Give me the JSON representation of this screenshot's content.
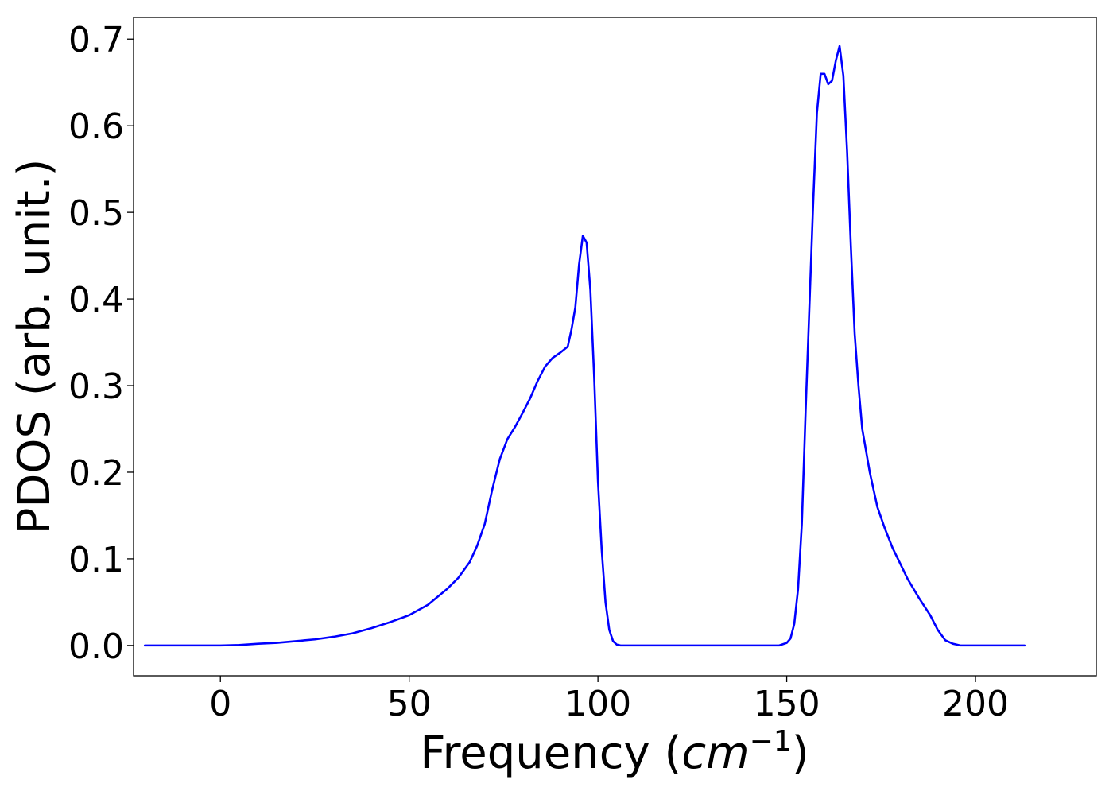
{
  "chart_data": {
    "type": "line",
    "xlabel": "Frequency",
    "xlabel_unit_base": "cm",
    "xlabel_unit_exp": "−1",
    "ylabel": "PDOS (arb. unit.)",
    "xlim": [
      -23,
      232
    ],
    "ylim": [
      -0.035,
      0.725
    ],
    "x_ticks": [
      0,
      50,
      100,
      150,
      200
    ],
    "y_ticks": [
      0.0,
      0.1,
      0.2,
      0.3,
      0.4,
      0.5,
      0.6,
      0.7
    ],
    "y_tick_labels": [
      "0.0",
      "0.1",
      "0.2",
      "0.3",
      "0.4",
      "0.5",
      "0.6",
      "0.7"
    ],
    "grid": false,
    "series": [
      {
        "color": "#0000ff",
        "x": [
          -20,
          -10,
          0,
          5,
          10,
          15,
          20,
          25,
          30,
          35,
          40,
          45,
          50,
          55,
          60,
          63,
          66,
          68,
          70,
          72,
          74,
          76,
          78,
          80,
          82,
          84,
          86,
          88,
          90,
          92,
          93,
          94,
          95,
          96,
          97,
          98,
          99,
          100,
          101,
          102,
          103,
          104,
          105,
          106,
          107,
          108,
          110,
          120,
          130,
          140,
          148,
          150,
          151,
          152,
          153,
          154,
          155,
          156,
          157,
          158,
          159,
          160,
          161,
          162,
          163,
          164,
          165,
          166,
          167,
          168,
          169,
          170,
          171,
          172,
          173,
          174,
          176,
          178,
          180,
          182,
          185,
          188,
          190,
          192,
          194,
          195,
          196,
          197,
          198,
          200,
          213
        ],
        "y": [
          0.0,
          0.0,
          0.0,
          0.0005,
          0.002,
          0.003,
          0.005,
          0.007,
          0.01,
          0.014,
          0.02,
          0.027,
          0.035,
          0.047,
          0.065,
          0.078,
          0.096,
          0.115,
          0.14,
          0.18,
          0.215,
          0.238,
          0.252,
          0.268,
          0.285,
          0.305,
          0.322,
          0.332,
          0.338,
          0.345,
          0.365,
          0.39,
          0.44,
          0.473,
          0.465,
          0.41,
          0.31,
          0.19,
          0.11,
          0.05,
          0.018,
          0.005,
          0.001,
          0.0,
          0.0,
          0.0,
          0.0,
          0.0,
          0.0,
          0.0,
          0.0,
          0.003,
          0.008,
          0.025,
          0.065,
          0.14,
          0.27,
          0.39,
          0.51,
          0.615,
          0.66,
          0.66,
          0.648,
          0.652,
          0.675,
          0.692,
          0.658,
          0.57,
          0.46,
          0.36,
          0.3,
          0.25,
          0.225,
          0.2,
          0.18,
          0.16,
          0.135,
          0.113,
          0.095,
          0.077,
          0.055,
          0.035,
          0.018,
          0.006,
          0.002,
          0.001,
          0.0,
          0.0,
          0.0,
          0.0,
          0.0
        ]
      }
    ]
  }
}
